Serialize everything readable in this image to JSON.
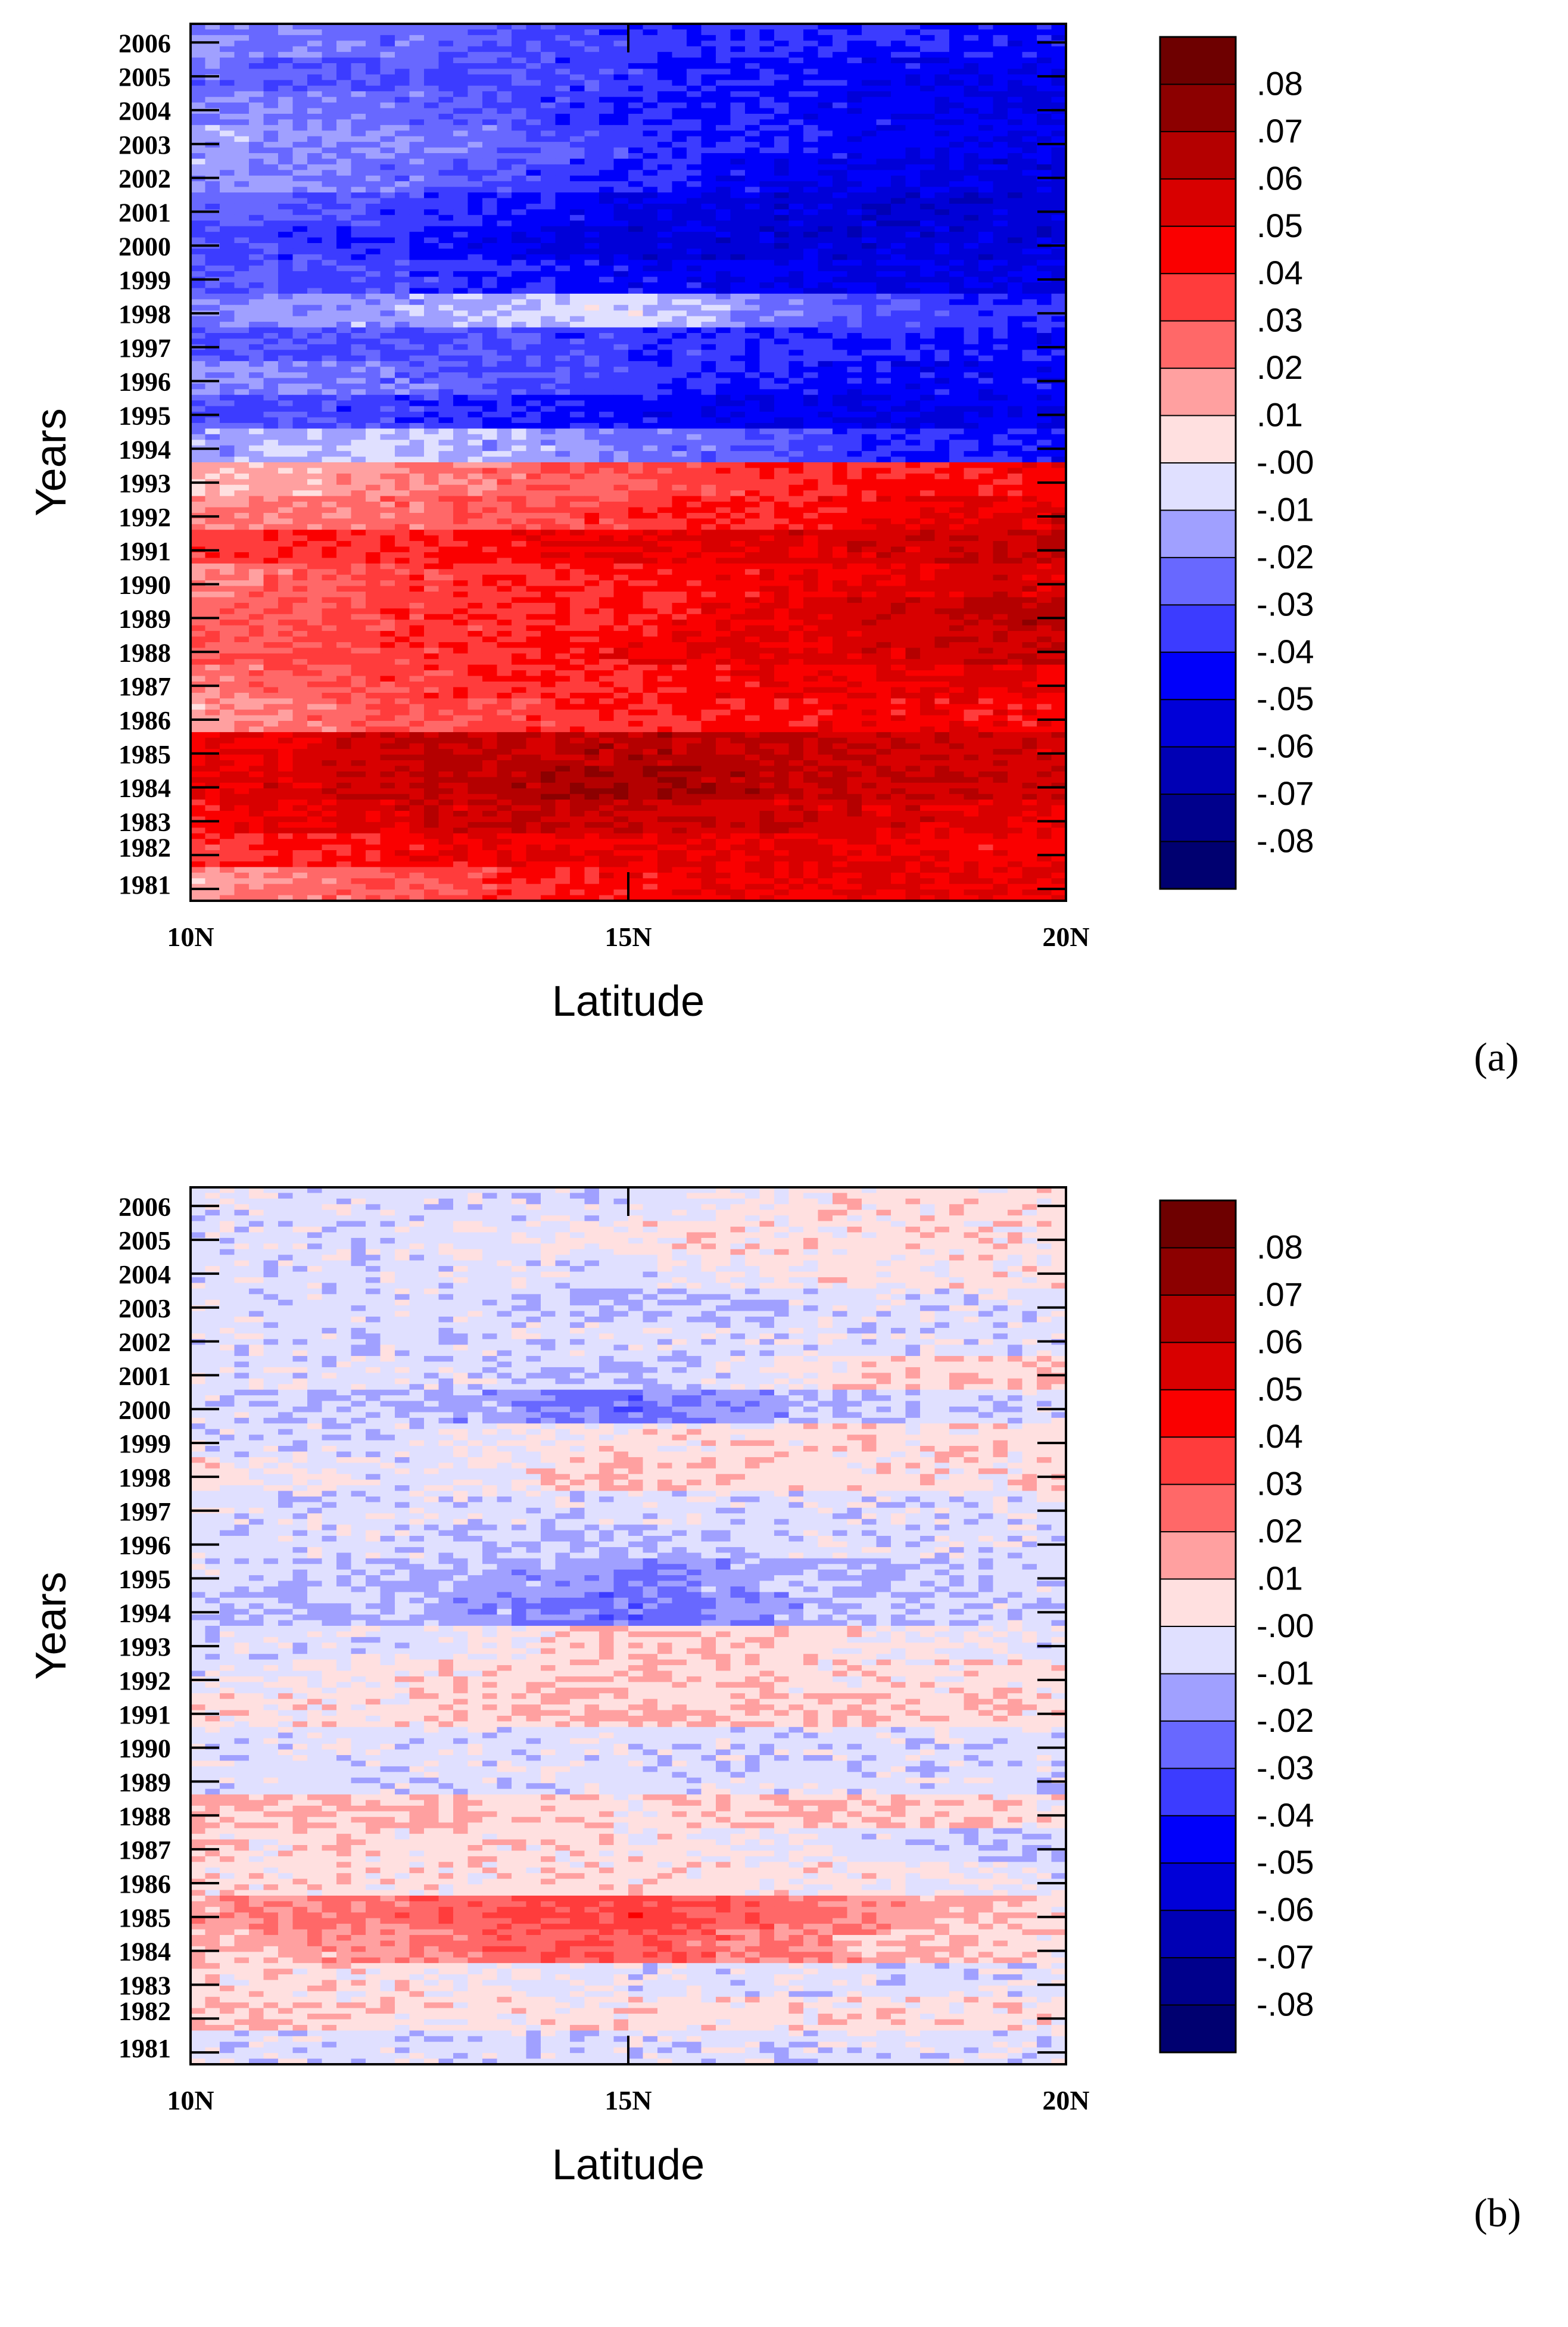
{
  "colorbar": {
    "labels": [
      ".08",
      ".07",
      ".06",
      ".05",
      ".04",
      ".03",
      ".02",
      ".01",
      "-.00",
      "-.01",
      "-.02",
      "-.03",
      "-.04",
      "-.05",
      "-.06",
      "-.07",
      "-.08"
    ],
    "colors": [
      "#6e0000",
      "#8c0000",
      "#b40000",
      "#d80000",
      "#fa0000",
      "#ff3c3c",
      "#ff6868",
      "#ffa0a0",
      "#ffe0e0",
      "#e0e0ff",
      "#a0a0ff",
      "#6868ff",
      "#3c3cff",
      "#0000fa",
      "#0000d8",
      "#0000b4",
      "#00008c",
      "#000070"
    ]
  },
  "chart_data": [
    {
      "type": "heatmap",
      "panel_label": "(a)",
      "xlabel": "Latitude",
      "ylabel": "Years",
      "x_tick_labels": [
        "10N",
        "15N",
        "20N"
      ],
      "x_range": [
        10,
        20
      ],
      "y_tick_labels": [
        "1981",
        "1982",
        "1983",
        "1984",
        "1985",
        "1986",
        "1987",
        "1988",
        "1989",
        "1990",
        "1991",
        "1992",
        "1993",
        "1994",
        "1995",
        "1996",
        "1997",
        "1998",
        "1999",
        "2000",
        "2001",
        "2002",
        "2003",
        "2004",
        "2005",
        "2006"
      ],
      "y_range": [
        1981,
        2006
      ],
      "color_range": [
        -0.08,
        0.08
      ],
      "description_values": {
        "years": [
          1981,
          1982,
          1983,
          1984,
          1985,
          1986,
          1987,
          1988,
          1989,
          1990,
          1991,
          1992,
          1993,
          1994,
          1995,
          1996,
          1997,
          1998,
          1999,
          2000,
          2001,
          2002,
          2003,
          2004,
          2005,
          2006
        ],
        "lat_nodes": [
          10,
          12.5,
          15,
          17.5,
          20
        ],
        "values": [
          [
            0.015,
            0.03,
            0.045,
            0.05,
            0.05
          ],
          [
            0.035,
            0.045,
            0.05,
            0.05,
            0.045
          ],
          [
            0.045,
            0.055,
            0.06,
            0.055,
            0.05
          ],
          [
            0.05,
            0.06,
            0.07,
            0.06,
            0.055
          ],
          [
            0.045,
            0.06,
            0.065,
            0.06,
            0.055
          ],
          [
            0.015,
            0.03,
            0.04,
            0.045,
            0.045
          ],
          [
            0.02,
            0.035,
            0.04,
            0.05,
            0.05
          ],
          [
            0.03,
            0.035,
            0.045,
            0.055,
            0.06
          ],
          [
            0.025,
            0.035,
            0.04,
            0.055,
            0.065
          ],
          [
            0.02,
            0.035,
            0.04,
            0.05,
            0.055
          ],
          [
            0.035,
            0.04,
            0.05,
            0.055,
            0.06
          ],
          [
            0.02,
            0.025,
            0.035,
            0.045,
            0.055
          ],
          [
            0.01,
            0.02,
            0.03,
            0.04,
            0.045
          ],
          [
            -0.015,
            -0.01,
            -0.02,
            -0.035,
            -0.045
          ],
          [
            -0.03,
            -0.035,
            -0.045,
            -0.05,
            -0.05
          ],
          [
            -0.02,
            -0.025,
            -0.035,
            -0.045,
            -0.045
          ],
          [
            -0.03,
            -0.03,
            -0.035,
            -0.04,
            -0.045
          ],
          [
            -0.02,
            -0.015,
            -0.005,
            -0.03,
            -0.04
          ],
          [
            -0.03,
            -0.035,
            -0.045,
            -0.05,
            -0.05
          ],
          [
            -0.03,
            -0.04,
            -0.055,
            -0.055,
            -0.055
          ],
          [
            -0.025,
            -0.035,
            -0.05,
            -0.055,
            -0.055
          ],
          [
            -0.015,
            -0.025,
            -0.04,
            -0.05,
            -0.055
          ],
          [
            -0.015,
            -0.02,
            -0.035,
            -0.045,
            -0.05
          ],
          [
            -0.02,
            -0.025,
            -0.04,
            -0.045,
            -0.05
          ],
          [
            -0.025,
            -0.03,
            -0.035,
            -0.045,
            -0.05
          ],
          [
            -0.02,
            -0.025,
            -0.035,
            -0.04,
            -0.045
          ]
        ]
      }
    },
    {
      "type": "heatmap",
      "panel_label": "(b)",
      "xlabel": "Latitude",
      "ylabel": "Years",
      "x_tick_labels": [
        "10N",
        "15N",
        "20N"
      ],
      "x_range": [
        10,
        20
      ],
      "y_tick_labels": [
        "1981",
        "1982",
        "1983",
        "1984",
        "1985",
        "1986",
        "1987",
        "1988",
        "1989",
        "1990",
        "1991",
        "1992",
        "1993",
        "1994",
        "1995",
        "1996",
        "1997",
        "1998",
        "1999",
        "2000",
        "2001",
        "2002",
        "2003",
        "2004",
        "2005",
        "2006"
      ],
      "y_range": [
        1981,
        2006
      ],
      "color_range": [
        -0.08,
        0.08
      ],
      "description_values": {
        "years": [
          1981,
          1982,
          1983,
          1984,
          1985,
          1986,
          1987,
          1988,
          1989,
          1990,
          1991,
          1992,
          1993,
          1994,
          1995,
          1996,
          1997,
          1998,
          1999,
          2000,
          2001,
          2002,
          2003,
          2004,
          2005,
          2006
        ],
        "lat_nodes": [
          10,
          12.5,
          15,
          17.5,
          20
        ],
        "values": [
          [
            -0.005,
            -0.005,
            -0.005,
            -0.005,
            -0.005
          ],
          [
            0.01,
            0.005,
            0.005,
            0.005,
            0.005
          ],
          [
            0.005,
            0.005,
            -0.005,
            -0.005,
            -0.005
          ],
          [
            0.01,
            0.02,
            0.03,
            0.015,
            0.005
          ],
          [
            0.015,
            0.025,
            0.035,
            0.02,
            0.005
          ],
          [
            0.005,
            0.005,
            0.005,
            0.005,
            -0.005
          ],
          [
            0.005,
            0.005,
            0.005,
            -0.005,
            -0.01
          ],
          [
            0.01,
            0.01,
            0.005,
            0.01,
            0.005
          ],
          [
            -0.005,
            -0.005,
            -0.005,
            -0.005,
            -0.005
          ],
          [
            -0.005,
            -0.005,
            -0.005,
            -0.005,
            -0.005
          ],
          [
            0.005,
            0.005,
            0.01,
            0.01,
            0.005
          ],
          [
            -0.005,
            0.005,
            0.01,
            0.005,
            0.005
          ],
          [
            -0.005,
            -0.005,
            0.01,
            0.005,
            -0.005
          ],
          [
            -0.01,
            -0.01,
            -0.025,
            -0.01,
            -0.005
          ],
          [
            -0.005,
            -0.01,
            -0.02,
            -0.01,
            -0.005
          ],
          [
            -0.005,
            -0.005,
            -0.01,
            -0.005,
            -0.005
          ],
          [
            -0.005,
            -0.005,
            -0.005,
            -0.005,
            -0.005
          ],
          [
            0.005,
            -0.005,
            0.01,
            0.005,
            0.005
          ],
          [
            -0.005,
            -0.005,
            0.005,
            0.005,
            0.005
          ],
          [
            -0.005,
            -0.01,
            -0.025,
            -0.01,
            -0.005
          ],
          [
            -0.005,
            -0.005,
            -0.01,
            0.005,
            0.01
          ],
          [
            -0.005,
            -0.005,
            -0.005,
            -0.005,
            -0.005
          ],
          [
            -0.005,
            -0.005,
            -0.01,
            -0.005,
            -0.005
          ],
          [
            -0.005,
            -0.005,
            -0.005,
            0.005,
            0.005
          ],
          [
            -0.005,
            -0.005,
            0.005,
            0.005,
            0.005
          ],
          [
            -0.005,
            -0.005,
            -0.005,
            0.005,
            0.005
          ]
        ]
      }
    }
  ]
}
